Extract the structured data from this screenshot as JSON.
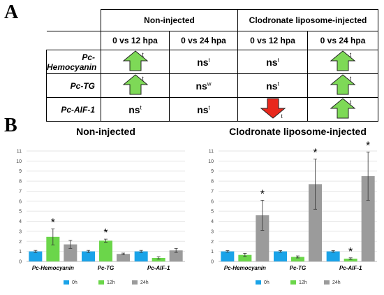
{
  "panel_a": {
    "letter": "A",
    "groups": [
      "Non-injected",
      "Clodronate liposome-injected"
    ],
    "comparisons": [
      "0 vs 12 hpa",
      "0 vs 24 hpa",
      "0 vs 12 hpa",
      "0 vs 24 hpa"
    ],
    "rows": [
      {
        "gene": "Pc-Hemocyanin",
        "cells": [
          {
            "kind": "up",
            "mark": "t"
          },
          {
            "kind": "ns",
            "text": "ns",
            "mark": "t"
          },
          {
            "kind": "ns",
            "text": "ns",
            "mark": "t"
          },
          {
            "kind": "up",
            "mark": "t"
          }
        ]
      },
      {
        "gene": "Pc-TG",
        "cells": [
          {
            "kind": "up",
            "mark": "t"
          },
          {
            "kind": "ns",
            "text": "ns",
            "mark": "w"
          },
          {
            "kind": "ns",
            "text": "ns",
            "mark": "t"
          },
          {
            "kind": "up",
            "mark": "t"
          }
        ]
      },
      {
        "gene": "Pc-AIF-1",
        "cells": [
          {
            "kind": "ns",
            "text": "ns",
            "mark": "t"
          },
          {
            "kind": "ns",
            "text": "ns",
            "mark": "t"
          },
          {
            "kind": "down",
            "mark": "t"
          },
          {
            "kind": "up",
            "mark": "t"
          }
        ]
      }
    ],
    "arrow_colors": {
      "up": "#7ed957",
      "down": "#e8281c"
    }
  },
  "panel_b": {
    "letter": "B"
  },
  "chart_data": [
    {
      "type": "bar",
      "title": "Non-injected",
      "categories": [
        "Pc-Hemocyanin",
        "Pc-TG",
        "Pc-AIF-1"
      ],
      "ylim": [
        0,
        11
      ],
      "yticks": [
        0,
        1,
        2,
        3,
        4,
        5,
        6,
        7,
        8,
        9,
        10,
        11
      ],
      "series": [
        {
          "name": "0h",
          "color": "#1aa3e8",
          "values": [
            1.0,
            1.0,
            1.0
          ],
          "errors": [
            0.1,
            0.1,
            0.1
          ]
        },
        {
          "name": "12h",
          "color": "#6bd64a",
          "values": [
            2.45,
            2.07,
            0.35
          ],
          "errors": [
            0.8,
            0.15,
            0.12
          ]
        },
        {
          "name": "24h",
          "color": "#9b9b9b",
          "values": [
            1.7,
            0.75,
            1.1
          ],
          "errors": [
            0.4,
            0.08,
            0.2
          ]
        }
      ],
      "significance": [
        {
          "category": 0,
          "series": 1,
          "text": "*"
        },
        {
          "category": 1,
          "series": 1,
          "text": "*"
        }
      ],
      "grid": true,
      "legend": "bottom"
    },
    {
      "type": "bar",
      "title": "Clodronate liposome-injected",
      "categories": [
        "Pc-Hemocyanin",
        "Pc-TG",
        "Pc-AIF-1"
      ],
      "ylim": [
        0,
        11
      ],
      "yticks": [
        0,
        1,
        2,
        3,
        4,
        5,
        6,
        7,
        8,
        9,
        10,
        11
      ],
      "series": [
        {
          "name": "0h",
          "color": "#1aa3e8",
          "values": [
            1.0,
            1.0,
            1.0
          ],
          "errors": [
            0.08,
            0.08,
            0.08
          ]
        },
        {
          "name": "12h",
          "color": "#6bd64a",
          "values": [
            0.65,
            0.45,
            0.28
          ],
          "errors": [
            0.15,
            0.1,
            0.08
          ]
        },
        {
          "name": "24h",
          "color": "#9b9b9b",
          "values": [
            4.6,
            7.7,
            8.5
          ],
          "errors": [
            1.5,
            2.5,
            2.4
          ]
        }
      ],
      "significance": [
        {
          "category": 0,
          "series": 2,
          "text": "*"
        },
        {
          "category": 1,
          "series": 2,
          "text": "*"
        },
        {
          "category": 2,
          "series": 2,
          "text": "*"
        },
        {
          "category": 2,
          "series": 1,
          "text": "*"
        }
      ],
      "grid": true,
      "legend": "bottom"
    }
  ]
}
